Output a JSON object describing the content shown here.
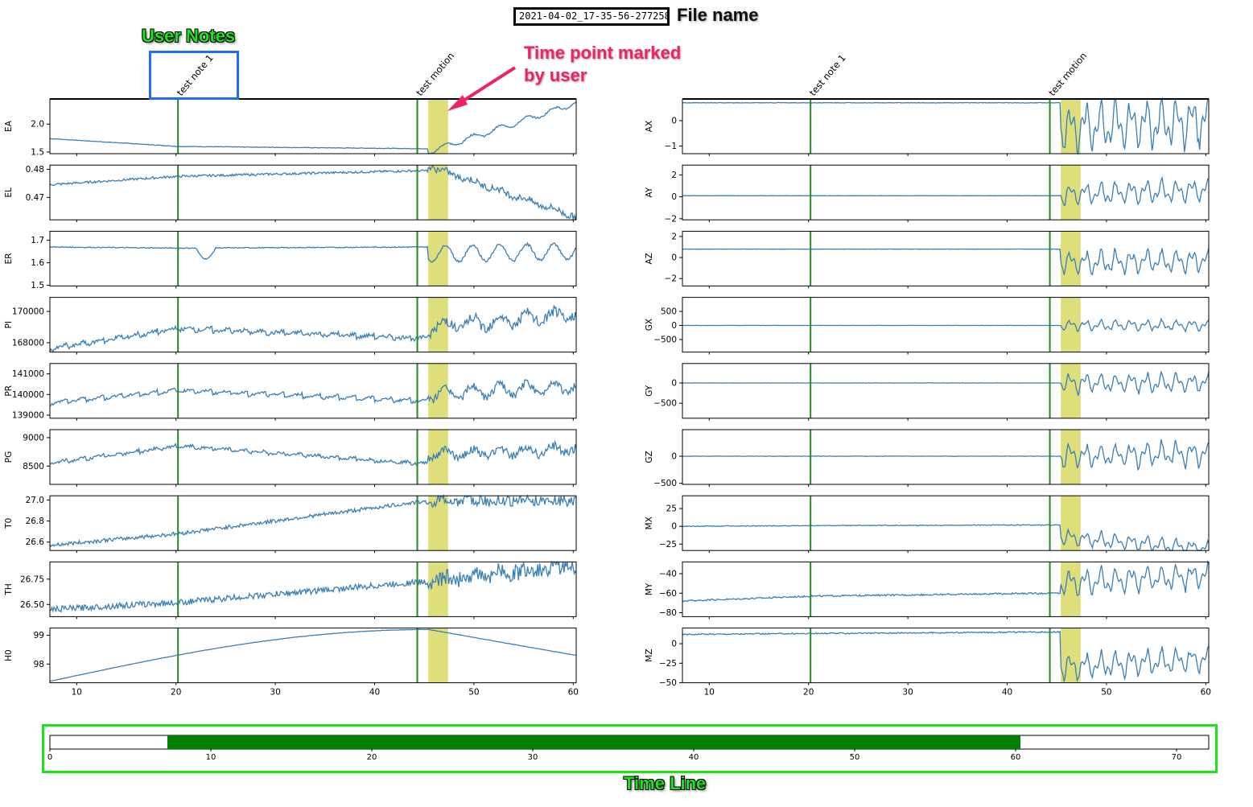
{
  "file_name": "2021-04-02_17-35-56-277258",
  "annotations": {
    "file_name_label": "File name",
    "user_notes_label": "User Notes",
    "marked_label": "Time point marked by user",
    "timeline_label": "Time Line"
  },
  "colors": {
    "signal": "#3a7fb5",
    "marker": "#228b22",
    "highlight": "#dede7a",
    "timeline_fill": "#008000",
    "notes_box": "#1e6ff0",
    "timeline_box": "#19e619",
    "marked_arrow": "#ee2266"
  },
  "chart_data": {
    "type": "line",
    "x_range": [
      7.3,
      60.3
    ],
    "x_ticks": [
      10,
      20,
      30,
      40,
      50,
      60
    ],
    "markers": [
      {
        "label": "test note 1",
        "x": 20.2
      },
      {
        "label": "test motion",
        "x": 44.3
      }
    ],
    "highlight_span": [
      45.4,
      47.4
    ],
    "left_panels": [
      {
        "label": "EA",
        "ylim": [
          1.47,
          2.45
        ],
        "ticks": [
          "2.0",
          "1.5"
        ],
        "tick_values": [
          2.0,
          1.5
        ],
        "shape": "drift",
        "base": [
          1.74,
          1.6,
          1.56
        ],
        "noise": 0.005,
        "tail": [
          1.5,
          2.38
        ],
        "wob": 0.08
      },
      {
        "label": "EL",
        "ylim": [
          0.462,
          0.4815
        ],
        "ticks": [
          "0.48",
          "0.47"
        ],
        "tick_values": [
          0.48,
          0.47
        ],
        "shape": "drift",
        "base": [
          0.4745,
          0.4775,
          0.4795
        ],
        "noise": 0.0004,
        "tail": [
          0.4812,
          0.463
        ],
        "wob": 0.0008
      },
      {
        "label": "ER",
        "ylim": [
          1.497,
          1.74
        ],
        "ticks": [
          "1.7",
          "1.6",
          "1.5"
        ],
        "tick_values": [
          1.7,
          1.6,
          1.5
        ],
        "shape": "flat_osc",
        "base": [
          1.67,
          1.665,
          1.67
        ],
        "noise": 0.002,
        "tail": [
          1.64,
          1.65
        ],
        "wob": 0.06
      },
      {
        "label": "PI",
        "ylim": [
          167400,
          170900
        ],
        "ticks": [
          "170000",
          "168000"
        ],
        "tick_values": [
          170000,
          168000
        ],
        "shape": "saw",
        "base": [
          167600,
          168900,
          168300
        ],
        "noise": 120,
        "tail": [
          169000,
          169800
        ],
        "wob": 600
      },
      {
        "label": "PR",
        "ylim": [
          138850,
          141500
        ],
        "ticks": [
          "141000",
          "140000",
          "139000"
        ],
        "tick_values": [
          141000,
          140000,
          139000
        ],
        "shape": "saw",
        "base": [
          139600,
          140200,
          139700
        ],
        "noise": 60,
        "tail": [
          140000,
          140400
        ],
        "wob": 500
      },
      {
        "label": "PG",
        "ylim": [
          8180,
          9140
        ],
        "ticks": [
          "9000",
          "8500"
        ],
        "tick_values": [
          9000,
          8500
        ],
        "shape": "saw",
        "base": [
          8550,
          8850,
          8550
        ],
        "noise": 25,
        "tail": [
          8700,
          8800
        ],
        "wob": 120
      },
      {
        "label": "T0",
        "ylim": [
          26.52,
          27.04
        ],
        "ticks": [
          "27.0",
          "26.8",
          "26.6"
        ],
        "tick_values": [
          27.0,
          26.8,
          26.6
        ],
        "shape": "drift",
        "base": [
          26.57,
          26.68,
          26.98
        ],
        "noise": 0.018,
        "tail": [
          26.99,
          27.0
        ],
        "wob": 0.01
      },
      {
        "label": "TH",
        "ylim": [
          26.38,
          26.92
        ],
        "ticks": [
          "26.75",
          "26.50"
        ],
        "tick_values": [
          26.75,
          26.5
        ],
        "shape": "drift",
        "base": [
          26.45,
          26.52,
          26.72
        ],
        "noise": 0.03,
        "tail": [
          26.74,
          26.88
        ],
        "wob": 0.02
      },
      {
        "label": "H0",
        "ylim": [
          97.35,
          99.25
        ],
        "ticks": [
          "99",
          "98"
        ],
        "tick_values": [
          99,
          98
        ],
        "shape": "arch",
        "base": [
          97.4,
          98.2,
          99.2
        ],
        "noise": 0.005,
        "tail": [
          99.2,
          98.3
        ],
        "wob": 0.01
      }
    ],
    "right_panels": [
      {
        "label": "AX",
        "ylim": [
          -1.3,
          0.85
        ],
        "ticks": [
          "0",
          "−1"
        ],
        "tick_values": [
          0,
          -1
        ],
        "shape": "quiet_burst",
        "base": [
          0.7,
          0.7,
          0.7
        ],
        "noise": 0.01,
        "tail": [
          -0.3,
          0.0
        ],
        "wob": 0.9
      },
      {
        "label": "AY",
        "ylim": [
          -2.1,
          2.9
        ],
        "ticks": [
          "2",
          "0",
          "−2"
        ],
        "tick_values": [
          2,
          0,
          -2
        ],
        "shape": "quiet_burst",
        "base": [
          0.1,
          0.1,
          0.1
        ],
        "noise": 0.01,
        "tail": [
          0.2,
          0.6
        ],
        "wob": 1.0
      },
      {
        "label": "AZ",
        "ylim": [
          -2.7,
          2.5
        ],
        "ticks": [
          "2",
          "0",
          "−2"
        ],
        "tick_values": [
          2,
          0,
          -2
        ],
        "shape": "quiet_burst",
        "base": [
          0.8,
          0.8,
          0.8
        ],
        "noise": 0.01,
        "tail": [
          -0.5,
          -0.3
        ],
        "wob": 1.0
      },
      {
        "label": "GX",
        "ylim": [
          -950,
          1000
        ],
        "ticks": [
          "500",
          "0",
          "−500"
        ],
        "tick_values": [
          500,
          0,
          -500
        ],
        "shape": "quiet_burst",
        "base": [
          0,
          0,
          0
        ],
        "noise": 3,
        "tail": [
          0,
          0
        ],
        "wob": 180
      },
      {
        "label": "GY",
        "ylim": [
          -870,
          480
        ],
        "ticks": [
          "0",
          "−500"
        ],
        "tick_values": [
          0,
          -500
        ],
        "shape": "quiet_burst",
        "base": [
          0,
          0,
          0
        ],
        "noise": 3,
        "tail": [
          0,
          0
        ],
        "wob": 220
      },
      {
        "label": "GZ",
        "ylim": [
          -520,
          490
        ],
        "ticks": [
          "0",
          "−500"
        ],
        "tick_values": [
          0,
          -500
        ],
        "shape": "quiet_burst",
        "base": [
          0,
          0,
          0
        ],
        "noise": 3,
        "tail": [
          0,
          50
        ],
        "wob": 200
      },
      {
        "label": "MX",
        "ylim": [
          -34,
          43
        ],
        "ticks": [
          "25",
          "0",
          "−25"
        ],
        "tick_values": [
          25,
          0,
          -25
        ],
        "shape": "quiet_burst",
        "base": [
          0,
          1,
          2
        ],
        "noise": 0.5,
        "tail": [
          -15,
          -32
        ],
        "wob": 10
      },
      {
        "label": "MY",
        "ylim": [
          -84,
          -28
        ],
        "ticks": [
          "−40",
          "−60",
          "−80"
        ],
        "tick_values": [
          -40,
          -60,
          -80
        ],
        "shape": "quiet_burst",
        "base": [
          -68,
          -63,
          -60
        ],
        "noise": 0.8,
        "tail": [
          -50,
          -42
        ],
        "wob": 12
      },
      {
        "label": "MZ",
        "ylim": [
          -50,
          20
        ],
        "ticks": [
          "0",
          "−25",
          "−50"
        ],
        "tick_values": [
          0,
          -25,
          -50
        ],
        "shape": "quiet_burst",
        "base": [
          12,
          13,
          15
        ],
        "noise": 0.8,
        "tail": [
          -30,
          -20
        ],
        "wob": 15
      }
    ],
    "timeline": {
      "x_range": [
        0,
        72
      ],
      "ticks": [
        0,
        10,
        20,
        30,
        40,
        50,
        60,
        70
      ],
      "window": [
        7.3,
        60.3
      ]
    }
  }
}
